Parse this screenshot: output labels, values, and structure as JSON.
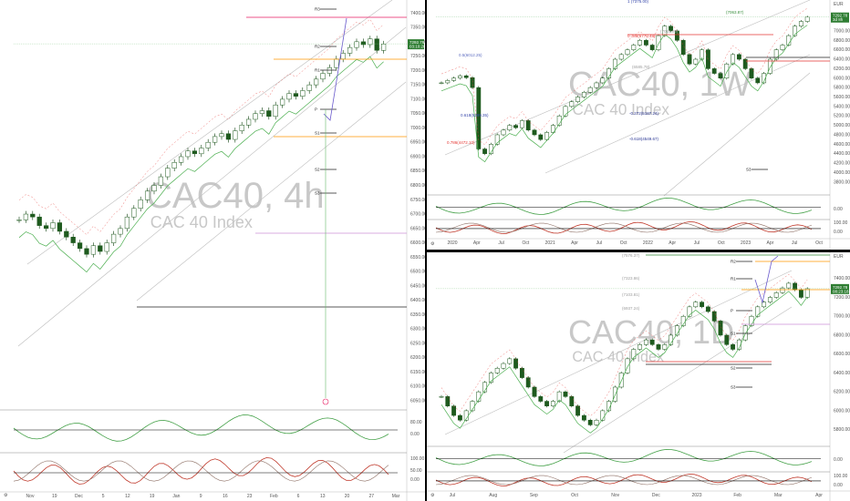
{
  "colors": {
    "up": "#1e7b1e",
    "down": "#1e7b1e",
    "band_green": "#4caf50",
    "band_red": "#e53935",
    "price_tag": "#2e7d32",
    "projection": "#6a5acd",
    "pivot_r3": "#e91e63",
    "pivot_orange": "#ff9800",
    "pivot_violet": "#ce93d8"
  },
  "chart_data": [
    {
      "type": "candlestick",
      "watermark_symbol": "CAC40, 4h",
      "watermark_name": "CAC 40 Index",
      "y_ticks": [
        "7400.00",
        "7350.00",
        "7300.00",
        "7250.00",
        "7200.00",
        "7150.00",
        "7100.00",
        "7050.00",
        "7000.00",
        "6950.00",
        "6900.00",
        "6850.00",
        "6800.00",
        "6750.00",
        "6700.00",
        "6650.00",
        "6600.00",
        "6550.00",
        "6500.00",
        "6450.00",
        "6400.00",
        "6350.00",
        "6300.00",
        "6250.00",
        "6200.00",
        "6150.00",
        "6100.00",
        "6050.00"
      ],
      "ylim": [
        6050,
        7420
      ],
      "last_price": "7292.78",
      "last_price_sub": "03:10:28",
      "pivot_labels": [
        "R3",
        "R2",
        "R1",
        "P",
        "S1",
        "S2",
        "S3"
      ],
      "pivot_values": [
        7400,
        7330,
        7270,
        7220,
        7170,
        7110,
        7060
      ],
      "osc_ticks": [
        "80.00",
        "0.00",
        "100.00",
        "50.00",
        "0.00"
      ],
      "x_ticks": [
        "Nov",
        "19",
        "Dec",
        "5",
        "12",
        "19",
        "Jan",
        "9",
        "16",
        "23",
        "Feb",
        "6",
        "13",
        "20",
        "27",
        "Mar"
      ],
      "closes": [
        6680,
        6700,
        6690,
        6660,
        6650,
        6670,
        6640,
        6620,
        6600,
        6580,
        6560,
        6590,
        6570,
        6600,
        6630,
        6650,
        6690,
        6720,
        6750,
        6780,
        6800,
        6830,
        6860,
        6880,
        6900,
        6920,
        6910,
        6930,
        6950,
        6970,
        6980,
        6960,
        6990,
        7010,
        7030,
        7050,
        7060,
        7040,
        7080,
        7100,
        7120,
        7110,
        7130,
        7150,
        7170,
        7190,
        7210,
        7240,
        7260,
        7280,
        7300,
        7290,
        7310,
        7270,
        7292
      ]
    },
    {
      "type": "candlestick",
      "watermark_symbol": "CAC40, 1W",
      "watermark_name": "CAC 40 Index",
      "y_ticks": [
        "7000.00",
        "6800.00",
        "6600.00",
        "6400.00",
        "6200.00",
        "6000.00",
        "5800.00",
        "5600.00",
        "5400.00",
        "5200.00",
        "5000.00",
        "4800.00",
        "4600.00",
        "4400.00",
        "4200.00",
        "4000.00",
        "3800.00"
      ],
      "ylim": [
        3700,
        7500
      ],
      "currency": "EUR",
      "last_price": "7292.78",
      "last_price_sub": "3d 8h",
      "fib_labels": [
        "1 (7375.00)",
        "(7063.87)",
        "0.786(6770.48)",
        "(7015.09)",
        "0.5(6012.25)",
        "(6585.78)",
        "0.618(5299.35)",
        "0.786(4472.10)",
        "-0.272(5187.24)",
        "-0.618(4549.67)"
      ],
      "pivot_labels": [
        "S3"
      ],
      "osc_ticks": [
        "0.00",
        "100.00",
        "0.00"
      ],
      "x_ticks": [
        "2020",
        "Apr",
        "Jul",
        "Oct",
        "2021",
        "Apr",
        "Jul",
        "Oct",
        "2022",
        "Apr",
        "Jul",
        "Oct",
        "2023",
        "Apr",
        "Jul",
        "Oct"
      ],
      "closes": [
        5900,
        5950,
        6000,
        6050,
        6010,
        5800,
        4500,
        4400,
        4600,
        4800,
        4900,
        5000,
        4950,
        5100,
        4900,
        4800,
        4700,
        4850,
        5000,
        5200,
        5400,
        5500,
        5600,
        5700,
        5800,
        5900,
        6000,
        6200,
        6400,
        6500,
        6600,
        6700,
        6800,
        6700,
        6600,
        6900,
        7100,
        7000,
        6800,
        6500,
        6300,
        6400,
        6600,
        6200,
        6100,
        6000,
        6300,
        6500,
        6400,
        6200,
        6000,
        5900,
        6100,
        6400,
        6600,
        6700,
        6900,
        7100,
        7200,
        7292
      ]
    },
    {
      "type": "candlestick",
      "watermark_symbol": "CAC40, 1D",
      "watermark_name": "CAC 40 Index",
      "y_ticks": [
        "7400.00",
        "7200.00",
        "7000.00",
        "6800.00",
        "6600.00",
        "6400.00",
        "6200.00",
        "6000.00",
        "5800.00"
      ],
      "ylim": [
        5700,
        7600
      ],
      "currency": "EUR",
      "last_price": "7292.78",
      "last_price_sub": "08:23:18",
      "fib_labels": [
        "(7576.37)",
        "(7323.86)",
        "(7103.81)",
        "(6937.24)"
      ],
      "pivot_labels": [
        "R2",
        "R1",
        "P",
        "S1",
        "S2",
        "S3"
      ],
      "osc_ticks": [
        "0.00",
        "100.00",
        "0.00"
      ],
      "x_ticks": [
        "Jul",
        "Aug",
        "Sep",
        "Oct",
        "Nov",
        "Dec",
        "2023",
        "Feb",
        "Mar",
        "Apr"
      ],
      "closes": [
        6150,
        6050,
        5950,
        5900,
        6000,
        6100,
        6200,
        6300,
        6400,
        6450,
        6500,
        6550,
        6450,
        6350,
        6250,
        6150,
        6100,
        6050,
        6100,
        6200,
        6150,
        6050,
        5950,
        5900,
        5850,
        5900,
        6000,
        6100,
        6250,
        6400,
        6550,
        6650,
        6700,
        6750,
        6700,
        6650,
        6700,
        6800,
        6900,
        7000,
        7100,
        7150,
        7100,
        7050,
        6950,
        6800,
        6700,
        6650,
        6750,
        6900,
        7000,
        7100,
        7150,
        7200,
        7250,
        7300,
        7350,
        7280,
        7200,
        7292
      ]
    }
  ]
}
